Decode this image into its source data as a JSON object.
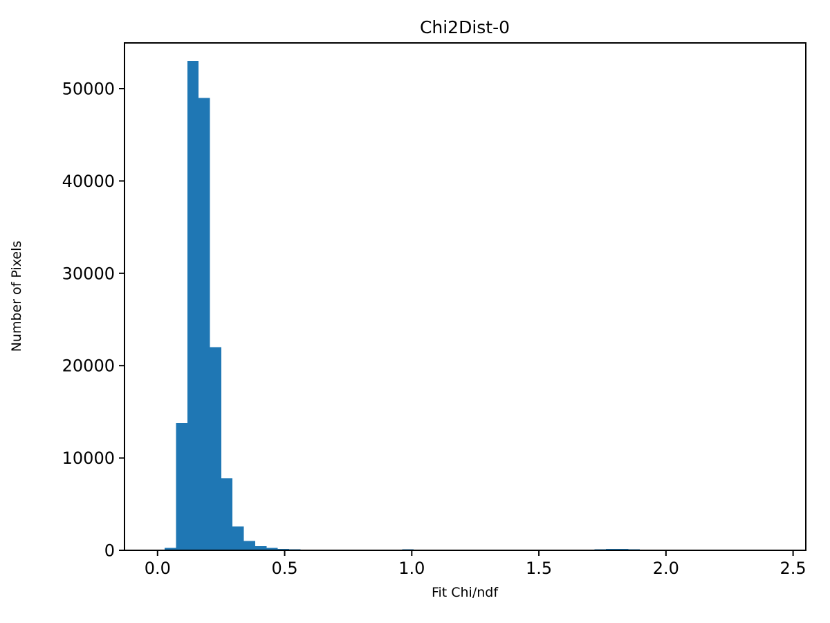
{
  "figure": {
    "background_color": "#ffffff",
    "axis_color": "#000000"
  },
  "chart_data": {
    "type": "histogram",
    "title": "Chi2Dist-0",
    "xlabel": "Fit Chi/ndf",
    "ylabel": "Number of Pixels",
    "bar_color": "#1f77b4",
    "grid": false,
    "legend": null,
    "xlim": [
      -0.13,
      2.55
    ],
    "ylim": [
      0,
      54950
    ],
    "xticks": [
      0.0,
      0.5,
      1.0,
      1.5,
      2.0,
      2.5
    ],
    "xtick_labels": [
      "0.0",
      "0.5",
      "1.0",
      "1.5",
      "2.0",
      "2.5"
    ],
    "yticks": [
      0,
      10000,
      20000,
      30000,
      40000,
      50000
    ],
    "ytick_labels": [
      "0",
      "10000",
      "20000",
      "30000",
      "40000",
      "50000"
    ],
    "bin_start": 0.028,
    "bin_width": 0.0445,
    "counts": [
      250,
      13800,
      53000,
      49000,
      22000,
      7800,
      2600,
      1000,
      450,
      250,
      150,
      120,
      80,
      60,
      40,
      0,
      0,
      0,
      0,
      60,
      80,
      100,
      90,
      80,
      70,
      70,
      60,
      60,
      50,
      50,
      0,
      0,
      0,
      50,
      60,
      60,
      70,
      80,
      120,
      150,
      150,
      120,
      90,
      70,
      60,
      60,
      50,
      0,
      0,
      0,
      0,
      0,
      0,
      0,
      0,
      0
    ]
  }
}
